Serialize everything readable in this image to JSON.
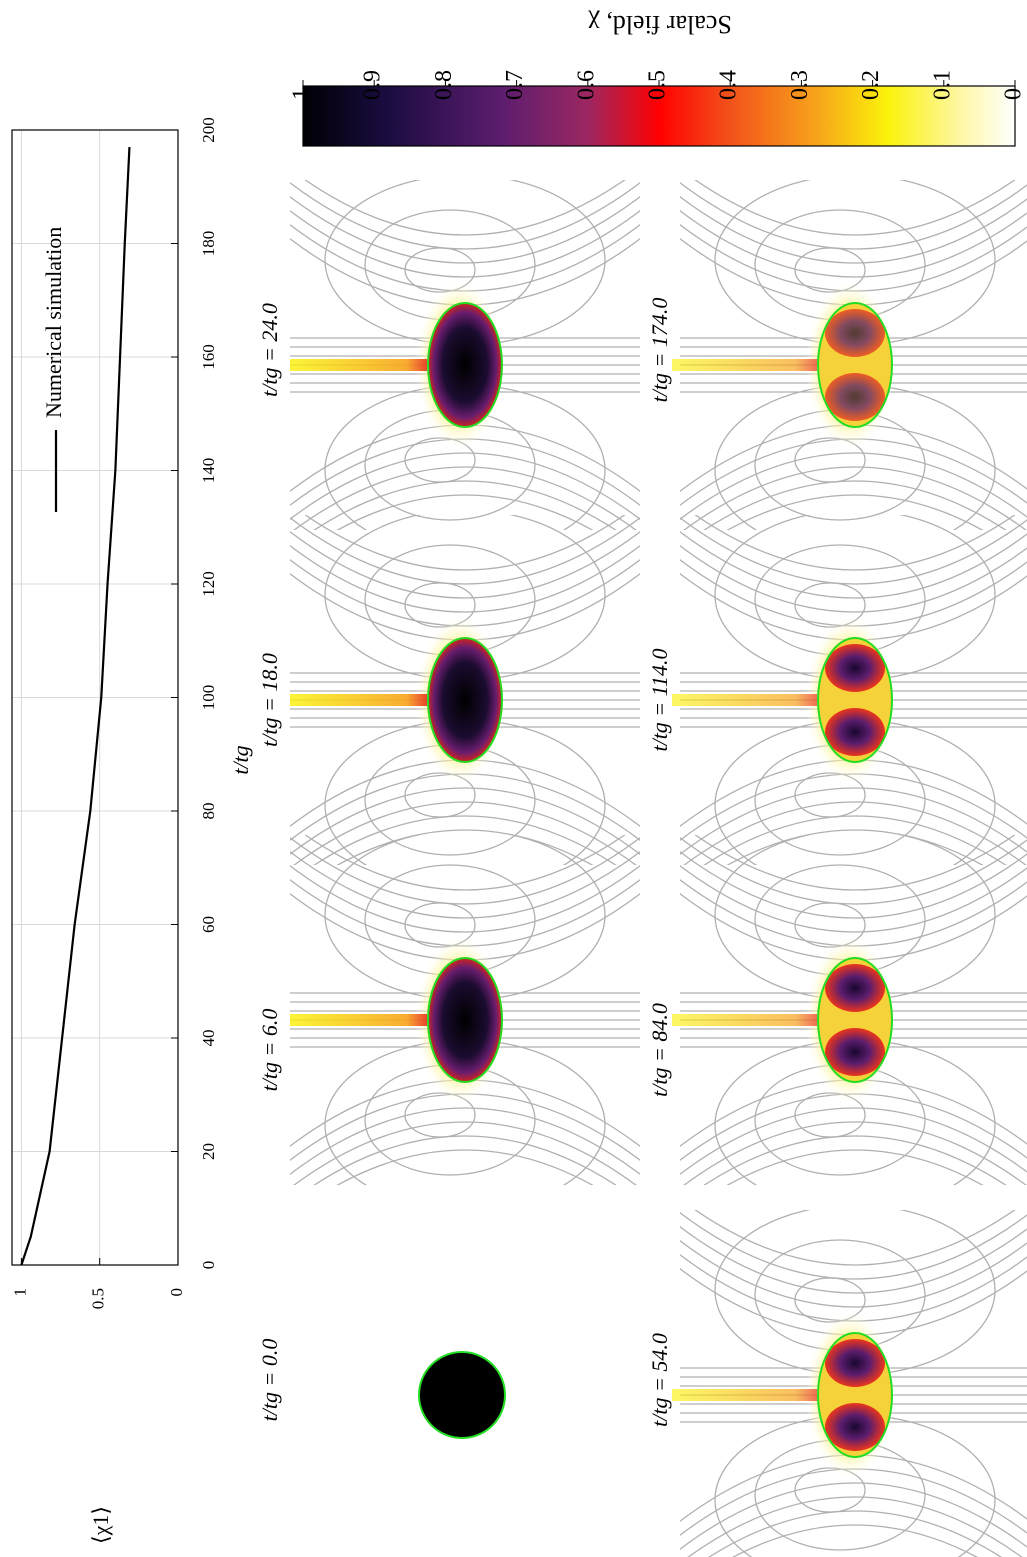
{
  "chart_data": [
    {
      "type": "line",
      "xlabel": "t/tg",
      "ylabel": "⟨χ1⟩",
      "x": [
        0,
        5,
        10,
        20,
        40,
        60,
        80,
        100,
        120,
        140,
        160,
        180,
        197
      ],
      "series": [
        {
          "name": "Numerical simulation",
          "color": "#000000",
          "values": [
            1,
            0.94,
            0.9,
            0.82,
            0.74,
            0.66,
            0.56,
            0.49,
            0.45,
            0.4,
            0.37,
            0.34,
            0.31
          ]
        }
      ],
      "xlim": [
        0,
        200
      ],
      "ylim": [
        0,
        1.06
      ],
      "xticks": [
        0,
        20,
        40,
        60,
        80,
        100,
        120,
        140,
        160,
        180,
        200
      ],
      "yticks": [
        0,
        0.5,
        1
      ],
      "grid": true
    },
    {
      "type": "colorbar",
      "label": "Scalar field, χ",
      "clim": [
        0,
        1
      ],
      "ticks": [
        0,
        0.1,
        0.2,
        0.3,
        0.4,
        0.5,
        0.6,
        0.7,
        0.8,
        0.9,
        1
      ]
    }
  ],
  "panels": [
    {
      "label": "t/tg = 24.0"
    },
    {
      "label": "t/tg = 18.0"
    },
    {
      "label": "t/tg = 6.0"
    },
    {
      "label": "t/tg = 0.0"
    },
    {
      "label": "t/tg = 174.0"
    },
    {
      "label": "t/tg = 114.0"
    },
    {
      "label": "t/tg = 84.0"
    },
    {
      "label": "t/tg = 54.0"
    }
  ]
}
